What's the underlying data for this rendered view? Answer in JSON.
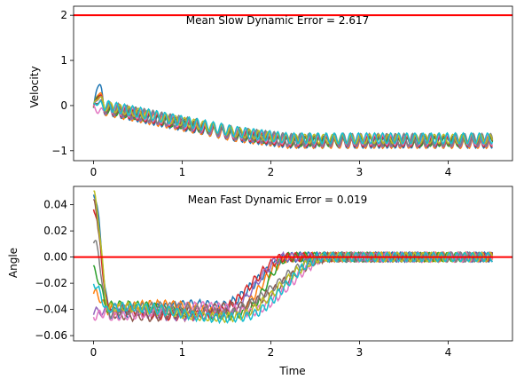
{
  "chart_data": [
    {
      "type": "line",
      "ylabel": "Velocity",
      "xlabel": "",
      "annotation": "Mean Slow Dynamic Error = 2.617",
      "xlim": [
        -0.225,
        4.725
      ],
      "ylim": [
        -1.22,
        2.2
      ],
      "xticks": [
        0,
        1,
        2,
        3,
        4
      ],
      "yticks": [
        -1,
        0,
        1,
        2
      ],
      "reference_line": {
        "y": 2.0,
        "color": "#ff0000"
      },
      "trajectory": {
        "x": [
          0.0,
          0.25,
          0.5,
          0.8,
          1.2,
          1.6,
          2.2,
          3.0,
          4.0,
          4.5
        ],
        "y": [
          0.0,
          -0.1,
          -0.2,
          -0.32,
          -0.47,
          -0.63,
          -0.78,
          -0.78,
          -0.78,
          -0.78
        ]
      },
      "initial_peaks": [
        0.55,
        0.35,
        0.3,
        0.25,
        0.2,
        0.1,
        -0.15,
        0.05,
        0.15,
        0.0
      ],
      "series_count": 10
    },
    {
      "type": "line",
      "ylabel": "Angle",
      "xlabel": "Time",
      "annotation": "Mean Fast Dynamic Error = 0.019",
      "xlim": [
        -0.225,
        4.725
      ],
      "ylim": [
        -0.064,
        0.054
      ],
      "xticks": [
        0,
        1,
        2,
        3,
        4
      ],
      "yticks": [
        -0.06,
        -0.04,
        -0.02,
        0.0,
        0.02,
        0.04
      ],
      "ytick_labels": [
        "−0.06",
        "−0.04",
        "−0.02",
        "0.00",
        "0.02",
        "0.04"
      ],
      "reference_line": {
        "y": 0.0,
        "color": "#ff0000"
      },
      "initial_values": [
        0.05,
        -0.027,
        -0.01,
        0.038,
        -0.042,
        0.041,
        -0.045,
        0.013,
        0.048,
        -0.02
      ],
      "series_count": 10
    }
  ],
  "colors": [
    "#1f77b4",
    "#ff7f0e",
    "#2ca02c",
    "#d62728",
    "#9467bd",
    "#8c564b",
    "#e377c2",
    "#7f7f7f",
    "#bcbd22",
    "#17becf"
  ]
}
